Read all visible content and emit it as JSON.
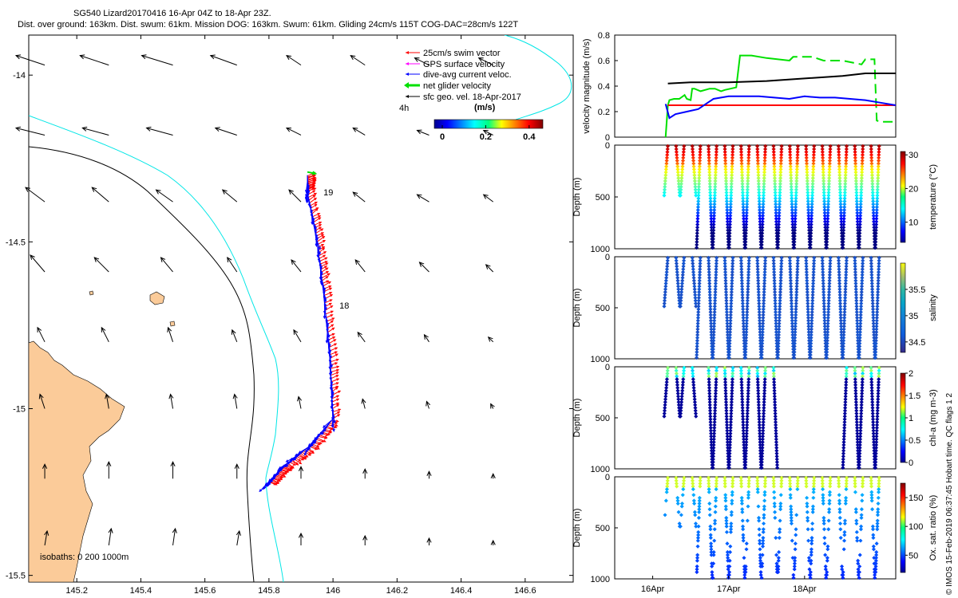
{
  "title_line1": "SG540 Lizard20170416 16-Apr 04Z to 18-Apr 23Z.",
  "title_line2": "Dist. over ground: 163km. Dist. swum: 61km. Mission DOG: 163km. Swum: 61km. Gliding 24cm/s 115T COG-DAC=28cm/s 122T",
  "footer": "© IMOS 15-Feb-2019 06:37:45 Hobart time. QC flags 1  2",
  "colors": {
    "land": "#fbcb99",
    "iso200": "#00e6e6",
    "iso1000": "#000000",
    "swim": "#ff0000",
    "gps": "#ff00ff",
    "dac": "#0000ff",
    "net": "#00e000",
    "sfc": "#000000"
  },
  "chart_data": [
    {
      "type": "map",
      "xlim": [
        145.05,
        146.75
      ],
      "ylim": [
        -15.52,
        -13.88
      ],
      "xticks": [
        "145.2",
        "145.4",
        "145.6",
        "145.8",
        "146",
        "146.2",
        "146.4",
        "146.6"
      ],
      "xtick_values": [
        145.2,
        145.4,
        145.6,
        145.8,
        146.0,
        146.2,
        146.4,
        146.6
      ],
      "yticks": [
        "-14",
        "-14.5",
        "-15",
        "-15.5"
      ],
      "ytick_values": [
        -14.0,
        -14.5,
        -15.0,
        -15.5
      ],
      "legend": [
        {
          "label": "25cm/s swim vector",
          "color": "#ff0000"
        },
        {
          "label": "GPS surface velocity",
          "color": "#ff00ff"
        },
        {
          "label": "dive-avg current veloc.",
          "color": "#0000ff"
        },
        {
          "label": "net glider velocity",
          "color": "#00e000"
        },
        {
          "label": "sfc geo. vel. 18-Apr-2017",
          "color": "#000000"
        }
      ],
      "legend_note": "4h",
      "colorbar": {
        "label": "(m/s)",
        "ticks": [
          "0",
          "0.2",
          "0.4"
        ],
        "tick_values": [
          0,
          0.2,
          0.4
        ],
        "range": [
          0,
          0.5
        ]
      },
      "isobath_label": "isobaths: 0   200  1000m",
      "day_labels": [
        {
          "text": "19",
          "lon": 145.97,
          "lat": -14.36
        },
        {
          "text": "18",
          "lon": 146.02,
          "lat": -14.7
        }
      ],
      "track": [
        [
          145.8,
          -15.22
        ],
        [
          145.85,
          -15.17
        ],
        [
          145.93,
          -15.11
        ],
        [
          146.0,
          -15.03
        ],
        [
          145.99,
          -14.85
        ],
        [
          145.97,
          -14.65
        ],
        [
          145.95,
          -14.5
        ],
        [
          145.92,
          -14.35
        ],
        [
          145.92,
          -14.3
        ]
      ],
      "geo_arrows": [
        {
          "lon": 145.1,
          "lat": -13.97,
          "u": -0.12,
          "v": 0.04
        },
        {
          "lon": 145.3,
          "lat": -13.97,
          "u": -0.12,
          "v": 0.04
        },
        {
          "lon": 145.5,
          "lat": -13.97,
          "u": -0.13,
          "v": 0.04
        },
        {
          "lon": 145.7,
          "lat": -13.97,
          "u": -0.11,
          "v": 0.04
        },
        {
          "lon": 145.9,
          "lat": -13.97,
          "u": -0.06,
          "v": 0.04
        },
        {
          "lon": 146.1,
          "lat": -13.97,
          "u": -0.06,
          "v": 0.04
        },
        {
          "lon": 146.3,
          "lat": -13.97,
          "u": -0.06,
          "v": 0.03
        },
        {
          "lon": 146.5,
          "lat": -13.97,
          "u": -0.06,
          "v": 0.03
        },
        {
          "lon": 145.1,
          "lat": -14.18,
          "u": -0.12,
          "v": 0.03
        },
        {
          "lon": 145.3,
          "lat": -14.18,
          "u": -0.11,
          "v": 0.03
        },
        {
          "lon": 145.5,
          "lat": -14.18,
          "u": -0.11,
          "v": 0.03
        },
        {
          "lon": 145.7,
          "lat": -14.18,
          "u": -0.09,
          "v": 0.03
        },
        {
          "lon": 145.9,
          "lat": -14.18,
          "u": -0.06,
          "v": 0.03
        },
        {
          "lon": 146.1,
          "lat": -14.18,
          "u": -0.05,
          "v": 0.03
        },
        {
          "lon": 146.3,
          "lat": -14.18,
          "u": -0.05,
          "v": 0.02
        },
        {
          "lon": 146.5,
          "lat": -14.18,
          "u": -0.04,
          "v": 0.02
        },
        {
          "lon": 145.1,
          "lat": -14.38,
          "u": -0.08,
          "v": 0.06
        },
        {
          "lon": 145.3,
          "lat": -14.38,
          "u": -0.07,
          "v": 0.06
        },
        {
          "lon": 145.5,
          "lat": -14.38,
          "u": -0.07,
          "v": 0.05
        },
        {
          "lon": 145.7,
          "lat": -14.38,
          "u": -0.06,
          "v": 0.05
        },
        {
          "lon": 145.9,
          "lat": -14.38,
          "u": -0.05,
          "v": 0.05
        },
        {
          "lon": 146.1,
          "lat": -14.38,
          "u": -0.05,
          "v": 0.04
        },
        {
          "lon": 146.3,
          "lat": -14.38,
          "u": -0.05,
          "v": 0.03
        },
        {
          "lon": 146.5,
          "lat": -14.38,
          "u": -0.04,
          "v": 0.03
        },
        {
          "lon": 145.1,
          "lat": -14.59,
          "u": -0.06,
          "v": 0.07
        },
        {
          "lon": 145.3,
          "lat": -14.59,
          "u": -0.06,
          "v": 0.06
        },
        {
          "lon": 145.5,
          "lat": -14.59,
          "u": -0.05,
          "v": 0.06
        },
        {
          "lon": 145.7,
          "lat": -14.59,
          "u": -0.04,
          "v": 0.06
        },
        {
          "lon": 145.9,
          "lat": -14.59,
          "u": -0.04,
          "v": 0.05
        },
        {
          "lon": 146.1,
          "lat": -14.59,
          "u": -0.04,
          "v": 0.05
        },
        {
          "lon": 146.3,
          "lat": -14.59,
          "u": -0.04,
          "v": 0.04
        },
        {
          "lon": 146.5,
          "lat": -14.59,
          "u": -0.03,
          "v": 0.03
        },
        {
          "lon": 145.1,
          "lat": -14.8,
          "u": -0.03,
          "v": 0.06
        },
        {
          "lon": 145.3,
          "lat": -14.8,
          "u": -0.03,
          "v": 0.06
        },
        {
          "lon": 145.5,
          "lat": -14.8,
          "u": -0.02,
          "v": 0.06
        },
        {
          "lon": 145.7,
          "lat": -14.8,
          "u": -0.02,
          "v": 0.05
        },
        {
          "lon": 145.9,
          "lat": -14.8,
          "u": -0.03,
          "v": 0.05
        },
        {
          "lon": 146.1,
          "lat": -14.8,
          "u": -0.03,
          "v": 0.04
        },
        {
          "lon": 146.3,
          "lat": -14.8,
          "u": -0.02,
          "v": 0.03
        },
        {
          "lon": 146.5,
          "lat": -14.8,
          "u": -0.02,
          "v": 0.02
        },
        {
          "lon": 145.1,
          "lat": -15.0,
          "u": -0.02,
          "v": 0.06
        },
        {
          "lon": 145.3,
          "lat": -15.0,
          "u": -0.01,
          "v": 0.06
        },
        {
          "lon": 145.5,
          "lat": -15.0,
          "u": -0.01,
          "v": 0.06
        },
        {
          "lon": 145.7,
          "lat": -15.0,
          "u": -0.01,
          "v": 0.06
        },
        {
          "lon": 145.9,
          "lat": -15.0,
          "u": -0.01,
          "v": 0.05
        },
        {
          "lon": 146.1,
          "lat": -15.0,
          "u": -0.01,
          "v": 0.04
        },
        {
          "lon": 146.3,
          "lat": -15.0,
          "u": -0.01,
          "v": 0.03
        },
        {
          "lon": 146.5,
          "lat": -15.0,
          "u": -0.01,
          "v": 0.02
        },
        {
          "lon": 145.1,
          "lat": -15.21,
          "u": 0.0,
          "v": 0.06
        },
        {
          "lon": 145.3,
          "lat": -15.21,
          "u": 0.0,
          "v": 0.07
        },
        {
          "lon": 145.5,
          "lat": -15.21,
          "u": 0.0,
          "v": 0.07
        },
        {
          "lon": 145.7,
          "lat": -15.21,
          "u": 0.0,
          "v": 0.06
        },
        {
          "lon": 145.9,
          "lat": -15.21,
          "u": 0.0,
          "v": 0.05
        },
        {
          "lon": 146.1,
          "lat": -15.21,
          "u": 0.0,
          "v": 0.04
        },
        {
          "lon": 146.3,
          "lat": -15.21,
          "u": 0.0,
          "v": 0.03
        },
        {
          "lon": 146.5,
          "lat": -15.21,
          "u": 0.0,
          "v": 0.02
        },
        {
          "lon": 145.1,
          "lat": -15.41,
          "u": 0.01,
          "v": 0.06
        },
        {
          "lon": 145.3,
          "lat": -15.41,
          "u": 0.01,
          "v": 0.07
        },
        {
          "lon": 145.5,
          "lat": -15.41,
          "u": 0.01,
          "v": 0.07
        },
        {
          "lon": 145.7,
          "lat": -15.41,
          "u": 0.01,
          "v": 0.06
        },
        {
          "lon": 145.9,
          "lat": -15.41,
          "u": 0.0,
          "v": 0.05
        },
        {
          "lon": 146.1,
          "lat": -15.41,
          "u": 0.0,
          "v": 0.04
        },
        {
          "lon": 146.3,
          "lat": -15.41,
          "u": 0.0,
          "v": 0.03
        },
        {
          "lon": 146.5,
          "lat": -15.41,
          "u": 0.0,
          "v": 0.02
        }
      ]
    },
    {
      "type": "line",
      "ylabel": "velocity magnitude (m/s)",
      "xlim": [
        15.5,
        19.2
      ],
      "ylim": [
        0,
        0.8
      ],
      "yticks": [
        "0",
        "0.2",
        "0.4",
        "0.6",
        "0.8"
      ],
      "ytick_values": [
        0,
        0.2,
        0.4,
        0.6,
        0.8
      ],
      "series": [
        {
          "name": "net glider velocity",
          "color": "#00e000",
          "dashed_after": 17.85,
          "x": [
            16.17,
            16.2,
            16.22,
            16.28,
            16.35,
            16.42,
            16.45,
            16.5,
            16.52,
            16.55,
            16.63,
            16.75,
            16.82,
            16.9,
            16.95,
            17.1,
            17.15,
            17.3,
            17.5,
            17.8,
            17.85,
            18.1,
            18.25,
            18.5,
            18.75,
            18.8,
            18.92,
            18.95,
            19.0,
            19.2
          ],
          "y": [
            0.0,
            0.25,
            0.29,
            0.3,
            0.3,
            0.33,
            0.3,
            0.29,
            0.38,
            0.38,
            0.36,
            0.38,
            0.38,
            0.36,
            0.37,
            0.39,
            0.64,
            0.64,
            0.62,
            0.6,
            0.63,
            0.63,
            0.6,
            0.6,
            0.57,
            0.61,
            0.61,
            0.13,
            0.12,
            0.12
          ]
        },
        {
          "name": "swim vector",
          "color": "#ff0000",
          "x": [
            16.2,
            19.2
          ],
          "y": [
            0.25,
            0.25
          ]
        },
        {
          "name": "dive-avg current",
          "color": "#0000ff",
          "x": [
            16.17,
            16.22,
            16.3,
            16.45,
            16.6,
            16.8,
            17.0,
            17.2,
            17.4,
            17.6,
            17.8,
            18.0,
            18.2,
            18.4,
            18.6,
            18.8,
            19.0,
            19.2
          ],
          "y": [
            0.26,
            0.15,
            0.18,
            0.2,
            0.22,
            0.3,
            0.32,
            0.32,
            0.32,
            0.31,
            0.3,
            0.32,
            0.31,
            0.31,
            0.3,
            0.29,
            0.27,
            0.25
          ]
        },
        {
          "name": "sfc geo. vel.",
          "color": "#000000",
          "x": [
            16.2,
            16.5,
            17.0,
            17.5,
            18.0,
            18.5,
            18.8,
            19.2
          ],
          "y": [
            0.42,
            0.43,
            0.43,
            0.44,
            0.46,
            0.48,
            0.5,
            0.5
          ]
        }
      ]
    },
    {
      "type": "scatter",
      "variable": "temperature",
      "clabel": "temperature (°C)",
      "ylabel": "Depth (m)",
      "yticks": [
        "0",
        "500",
        "1000"
      ],
      "ytick_values": [
        0,
        500,
        1000
      ],
      "cticks": [
        "10",
        "20",
        "30"
      ],
      "ctick_values": [
        10,
        20,
        30
      ],
      "crange": [
        4,
        31
      ]
    },
    {
      "type": "scatter",
      "variable": "salinity",
      "clabel": "salinity",
      "ylabel": "Depth (m)",
      "yticks": [
        "0",
        "500",
        "1000"
      ],
      "ytick_values": [
        0,
        500,
        1000
      ],
      "cticks": [
        "34.5",
        "35",
        "35.5"
      ],
      "ctick_values": [
        34.5,
        35,
        35.5
      ],
      "crange": [
        34.3,
        36.0
      ]
    },
    {
      "type": "scatter",
      "variable": "chl-a",
      "clabel": "chl-a (mg m-3)",
      "ylabel": "Depth (m)",
      "yticks": [
        "0",
        "500",
        "1000"
      ],
      "ytick_values": [
        0,
        500,
        1000
      ],
      "cticks": [
        "0",
        "0.5",
        "1",
        "1.5",
        "2"
      ],
      "ctick_values": [
        0,
        0.5,
        1,
        1.5,
        2
      ],
      "crange": [
        0,
        2
      ]
    },
    {
      "type": "scatter",
      "variable": "oxygen",
      "clabel": "Ox. sat. ratio (%)",
      "ylabel": "Depth (m)",
      "yticks": [
        "0",
        "500",
        "1000"
      ],
      "ytick_values": [
        0,
        500,
        1000
      ],
      "cticks": [
        "50",
        "100",
        "150"
      ],
      "ctick_values": [
        50,
        100,
        150
      ],
      "crange": [
        20,
        175
      ]
    },
    {
      "type": "time_axis",
      "xlim": [
        15.5,
        19.2
      ],
      "ticks": [
        "16Apr",
        "17Apr",
        "18Apr"
      ],
      "tick_values": [
        16.0,
        17.0,
        18.0
      ]
    }
  ]
}
